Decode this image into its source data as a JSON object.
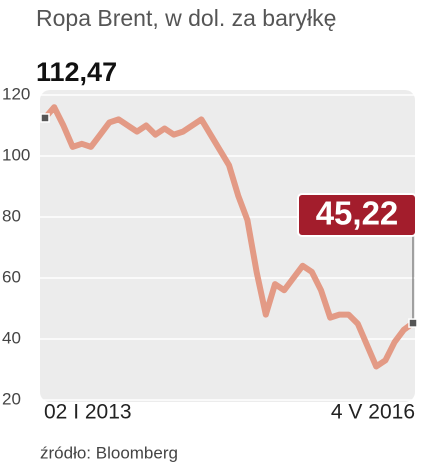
{
  "chart_data": {
    "type": "line",
    "title": "Ropa Brent, w dol. za baryłkę",
    "source": "źródło: Bloomberg",
    "categories": [
      "02 I 2013",
      null,
      null,
      null,
      null,
      null,
      null,
      null,
      null,
      null,
      null,
      null,
      null,
      null,
      null,
      null,
      null,
      null,
      null,
      null,
      null,
      null,
      null,
      null,
      null,
      null,
      null,
      null,
      null,
      null,
      null,
      null,
      null,
      null,
      null,
      null,
      null,
      null,
      null,
      null,
      "4 V 2016"
    ],
    "series": [
      {
        "color": "#e39a85",
        "values": [
          112.47,
          116,
          110,
          103,
          104,
          103,
          107,
          111,
          112,
          110,
          108,
          110,
          107,
          109,
          107,
          108,
          110,
          112,
          107,
          102,
          97,
          87,
          79,
          62,
          48,
          58,
          56,
          60,
          64,
          62,
          56,
          47,
          48,
          48,
          45,
          38,
          31,
          33,
          39,
          43,
          45.22
        ],
        "value_labels": [
          "112,47",
          null,
          null,
          null,
          null,
          null,
          null,
          null,
          null,
          null,
          null,
          null,
          null,
          null,
          null,
          null,
          null,
          null,
          null,
          null,
          null,
          null,
          null,
          null,
          null,
          null,
          null,
          null,
          null,
          null,
          null,
          null,
          null,
          null,
          null,
          null,
          null,
          null,
          null,
          null,
          "45,22"
        ]
      }
    ],
    "ylim": [
      20,
      120
    ],
    "yticks": [
      20,
      40,
      60,
      80,
      100,
      120
    ],
    "grid": true
  }
}
